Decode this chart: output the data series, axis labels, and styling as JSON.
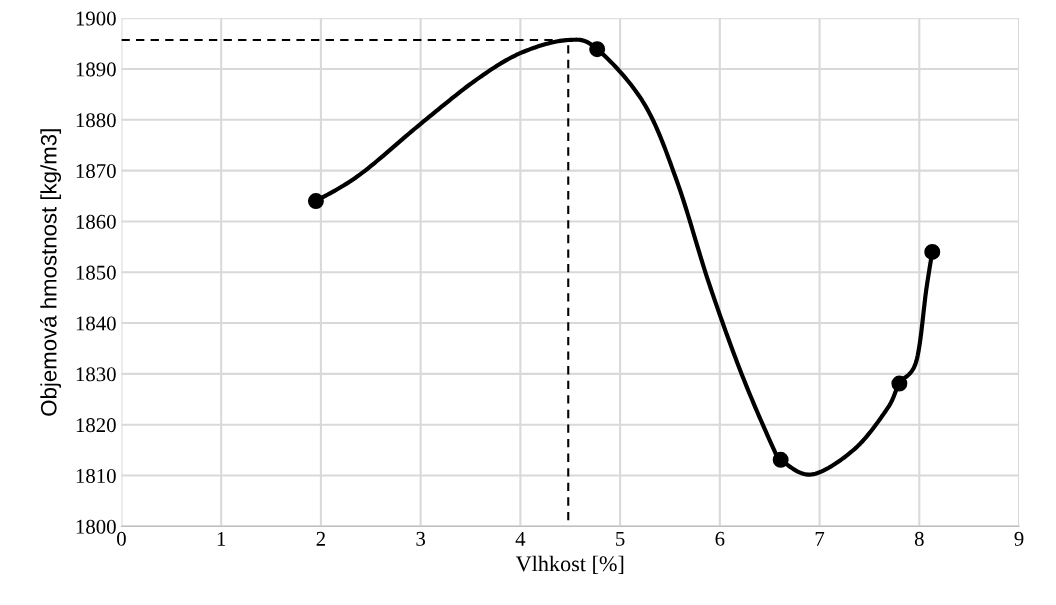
{
  "chart_data": {
    "type": "line",
    "xlabel": "Vlhkost [%]",
    "ylabel": "Objemová hmostnost [kg/m3]",
    "xlim": [
      0,
      9
    ],
    "xticks": [
      0,
      1,
      2,
      3,
      4,
      5,
      6,
      7,
      8,
      9
    ],
    "ylim": [
      1800,
      1900
    ],
    "yticks": [
      1800,
      1810,
      1820,
      1830,
      1840,
      1850,
      1860,
      1870,
      1880,
      1890,
      1900
    ],
    "grid": true,
    "legend": false,
    "series": [
      {
        "color": "#000000",
        "marker": "none",
        "line_style": "solid",
        "x": [
          1.95,
          2.39,
          3.0,
          3.56,
          4.01,
          4.48,
          4.77,
          5.24,
          5.57,
          5.89,
          6.22,
          6.54,
          6.61,
          6.92,
          7.35,
          7.68,
          7.8,
          7.97,
          8.07,
          8.13
        ],
        "values": [
          1864,
          1869.2,
          1879.2,
          1887.9,
          1893.2,
          1895.7,
          1893.9,
          1883.2,
          1867.9,
          1847.9,
          1829.9,
          1815.2,
          1813.1,
          1810.2,
          1815.2,
          1823.2,
          1828.1,
          1832.5,
          1846.6,
          1854
        ]
      },
      {
        "color": "#000000",
        "marker": "none",
        "line_style": "dashed",
        "x": [
          0,
          4.48,
          4.48
        ],
        "values": [
          1895.7,
          1895.7,
          1800
        ]
      },
      {
        "type": "scatter",
        "color": "#000000",
        "marker": "circle",
        "x": [
          1.95,
          4.77,
          6.61,
          7.8,
          8.13
        ],
        "values": [
          1864,
          1893.9,
          1813.1,
          1828.1,
          1854
        ]
      }
    ]
  }
}
